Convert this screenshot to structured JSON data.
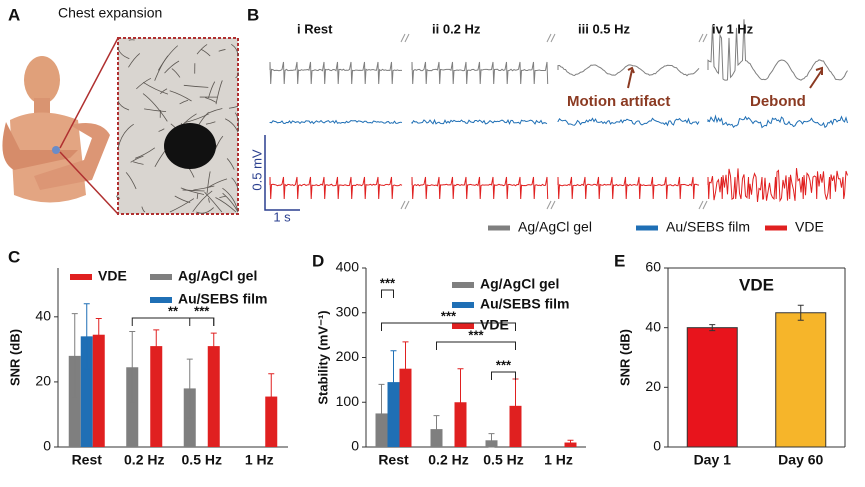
{
  "panel_a": {
    "label": "A",
    "title": "Chest expansion"
  },
  "panel_b": {
    "label": "B",
    "columns": [
      "i Rest",
      "ii 0.2 Hz",
      "iii 0.5 Hz",
      "iv 1 Hz"
    ],
    "annotations": [
      "Motion artifact",
      "Debond"
    ],
    "scale_y": "0.5 mV",
    "scale_x": "1 s",
    "legend": [
      {
        "name": "Ag/AgCl gel",
        "color": "#7f7f7f"
      },
      {
        "name": "Au/SEBS film",
        "color": "#1f6fb5"
      },
      {
        "name": "VDE",
        "color": "#e02020"
      }
    ]
  },
  "chart_data": [
    {
      "type": "bar",
      "label": "C",
      "ylabel": "SNR (dB)",
      "categories": [
        "Rest",
        "0.2 Hz",
        "0.5 Hz",
        "1 Hz"
      ],
      "ylim": [
        0,
        55
      ],
      "yticks": [
        0,
        20,
        40
      ],
      "series": [
        {
          "name": "Ag/AgCl gel",
          "color": "#7f7f7f",
          "values": [
            28,
            24.5,
            18,
            null
          ],
          "errors": [
            13,
            11,
            9,
            null
          ]
        },
        {
          "name": "Au/SEBS film",
          "color": "#1f6fb5",
          "values": [
            34,
            null,
            null,
            null
          ],
          "errors": [
            10,
            null,
            null,
            null
          ]
        },
        {
          "name": "VDE",
          "color": "#e02020",
          "values": [
            34.5,
            31,
            31,
            15.5
          ],
          "errors": [
            5,
            5,
            4,
            7
          ]
        }
      ],
      "annotations": [
        "**",
        "***"
      ]
    },
    {
      "type": "bar",
      "label": "D",
      "ylabel": "Stability (mV⁻¹)",
      "categories": [
        "Rest",
        "0.2 Hz",
        "0.5 Hz",
        "1 Hz"
      ],
      "ylim": [
        0,
        400
      ],
      "yticks": [
        0,
        100,
        200,
        300,
        400
      ],
      "series": [
        {
          "name": "Ag/AgCl gel",
          "color": "#7f7f7f",
          "values": [
            75,
            40,
            15,
            null
          ],
          "errors": [
            65,
            30,
            15,
            null
          ]
        },
        {
          "name": "Au/SEBS film",
          "color": "#1f6fb5",
          "values": [
            145,
            null,
            null,
            null
          ],
          "errors": [
            70,
            null,
            null,
            null
          ]
        },
        {
          "name": "VDE",
          "color": "#e02020",
          "values": [
            175,
            100,
            92,
            10
          ],
          "errors": [
            60,
            75,
            60,
            5
          ]
        }
      ],
      "annotations": [
        "***"
      ]
    },
    {
      "type": "bar",
      "label": "E",
      "title": "VDE",
      "ylabel": "SNR (dB)",
      "categories": [
        "Day 1",
        "Day 60"
      ],
      "values": [
        40,
        45
      ],
      "errors": [
        1,
        2.5
      ],
      "colors": [
        "#e8141c",
        "#f6b52a"
      ],
      "ylim": [
        0,
        60
      ],
      "yticks": [
        0,
        20,
        40,
        60
      ]
    }
  ]
}
